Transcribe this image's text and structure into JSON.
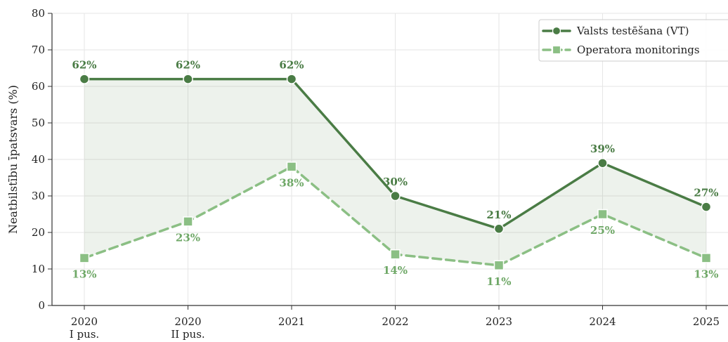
{
  "chart_data": {
    "type": "line",
    "title": "",
    "xlabel": "",
    "ylabel": "Neatbilstību īpatsvars (%)",
    "categories": [
      [
        "2020",
        "I pus."
      ],
      [
        "2020",
        "II pus."
      ],
      [
        "2021",
        ""
      ],
      [
        "2022",
        ""
      ],
      [
        "2023",
        ""
      ],
      [
        "2024",
        ""
      ],
      [
        "2025",
        ""
      ]
    ],
    "series": [
      {
        "name": "Valsts testēšana (VT)",
        "values": [
          62,
          62,
          62,
          30,
          21,
          39,
          27
        ],
        "labels": [
          "62%",
          "62%",
          "62%",
          "30%",
          "21%",
          "39%",
          "27%"
        ],
        "color": "#4a7c45",
        "marker": "circle",
        "dash": "solid"
      },
      {
        "name": "Operatora monitorings",
        "values": [
          13,
          23,
          38,
          14,
          11,
          25,
          13
        ],
        "labels": [
          "13%",
          "23%",
          "38%",
          "14%",
          "11%",
          "25%",
          "13%"
        ],
        "color": "#8bbf84",
        "marker": "square",
        "dash": "dashed"
      }
    ],
    "fill_between": true,
    "fill_color": "#4a7c45",
    "ylim": [
      0,
      80
    ],
    "yticks": [
      "0",
      "10",
      "20",
      "30",
      "40",
      "50",
      "60",
      "70",
      "80"
    ],
    "grid": true,
    "legend_position": "top-right"
  }
}
